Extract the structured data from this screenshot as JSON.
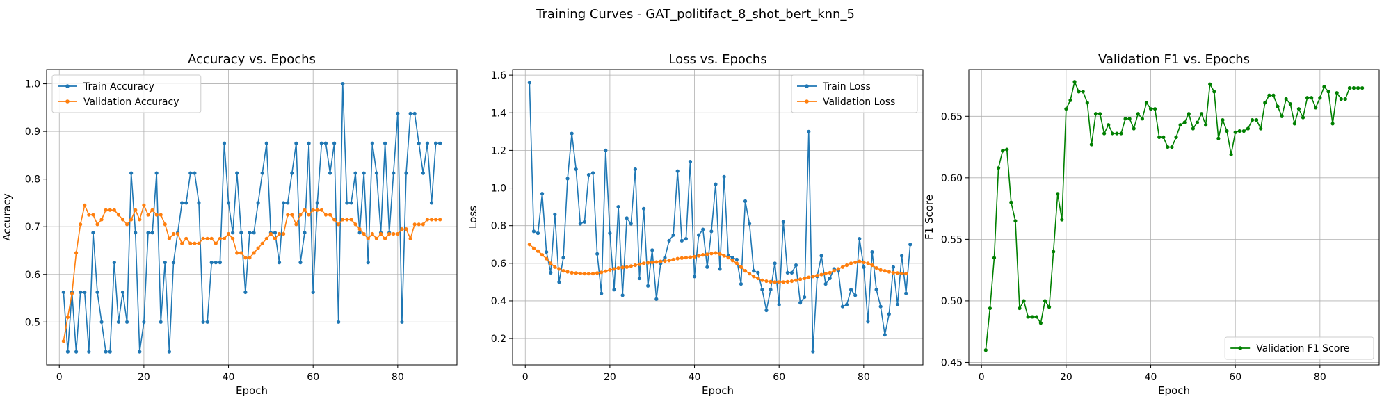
{
  "suptitle": "Training Curves - GAT_politifact_8_shot_bert_knn_5",
  "chart_data": [
    {
      "type": "line",
      "title": "Accuracy vs. Epochs",
      "xlabel": "Epoch",
      "ylabel": "Accuracy",
      "xlim": [
        -3,
        94
      ],
      "ylim": [
        0.41,
        1.03
      ],
      "xticks": [
        0,
        20,
        40,
        60,
        80
      ],
      "yticks": [
        0.5,
        0.6,
        0.7,
        0.8,
        0.9,
        1.0
      ],
      "ytick_decimals": 1,
      "grid": true,
      "legend_position": "upper-left",
      "series": [
        {
          "name": "Train Accuracy",
          "color": "#1f77b4",
          "values": [
            0.5625,
            0.4375,
            0.5625,
            0.4375,
            0.5625,
            0.5625,
            0.4375,
            0.6875,
            0.5625,
            0.5,
            0.4375,
            0.4375,
            0.625,
            0.5,
            0.5625,
            0.5,
            0.8125,
            0.6875,
            0.4375,
            0.5,
            0.6875,
            0.6875,
            0.8125,
            0.5,
            0.625,
            0.4375,
            0.625,
            0.6875,
            0.75,
            0.75,
            0.8125,
            0.8125,
            0.75,
            0.5,
            0.5,
            0.625,
            0.625,
            0.625,
            0.875,
            0.75,
            0.6875,
            0.8125,
            0.6875,
            0.5625,
            0.6875,
            0.6875,
            0.75,
            0.8125,
            0.875,
            0.6875,
            0.6875,
            0.625,
            0.75,
            0.75,
            0.8125,
            0.875,
            0.625,
            0.6875,
            0.875,
            0.5625,
            0.75,
            0.875,
            0.875,
            0.8125,
            0.875,
            0.5,
            1.0,
            0.75,
            0.75,
            0.8125,
            0.6875,
            0.8125,
            0.625,
            0.875,
            0.8125,
            0.6875,
            0.875,
            0.6875,
            0.8125,
            0.9375,
            0.5,
            0.8125,
            0.9375,
            0.9375,
            0.875,
            0.8125,
            0.875,
            0.75,
            0.875,
            0.875
          ]
        },
        {
          "name": "Validation Accuracy",
          "color": "#ff7f0e",
          "values": [
            0.46,
            0.51,
            0.56,
            0.645,
            0.705,
            0.745,
            0.725,
            0.725,
            0.705,
            0.715,
            0.735,
            0.735,
            0.735,
            0.725,
            0.715,
            0.705,
            0.715,
            0.735,
            0.715,
            0.745,
            0.725,
            0.735,
            0.725,
            0.725,
            0.705,
            0.675,
            0.685,
            0.685,
            0.665,
            0.675,
            0.665,
            0.665,
            0.665,
            0.675,
            0.675,
            0.675,
            0.665,
            0.675,
            0.675,
            0.685,
            0.675,
            0.645,
            0.645,
            0.635,
            0.635,
            0.645,
            0.655,
            0.665,
            0.675,
            0.685,
            0.675,
            0.685,
            0.685,
            0.725,
            0.725,
            0.705,
            0.725,
            0.735,
            0.725,
            0.735,
            0.735,
            0.735,
            0.725,
            0.725,
            0.715,
            0.705,
            0.715,
            0.715,
            0.715,
            0.705,
            0.695,
            0.685,
            0.675,
            0.685,
            0.675,
            0.685,
            0.675,
            0.685,
            0.685,
            0.685,
            0.695,
            0.695,
            0.675,
            0.705,
            0.705,
            0.705,
            0.715,
            0.715,
            0.715,
            0.715
          ]
        }
      ]
    },
    {
      "type": "line",
      "title": "Loss vs. Epochs",
      "xlabel": "Epoch",
      "ylabel": "Loss",
      "xlim": [
        -3,
        94
      ],
      "ylim": [
        0.06,
        1.63
      ],
      "xticks": [
        0,
        20,
        40,
        60,
        80
      ],
      "yticks": [
        0.2,
        0.4,
        0.6,
        0.8,
        1.0,
        1.2,
        1.4,
        1.6
      ],
      "ytick_decimals": 1,
      "grid": true,
      "legend_position": "upper-right",
      "series": [
        {
          "name": "Train Loss",
          "color": "#1f77b4",
          "values": [
            1.56,
            0.77,
            0.76,
            0.97,
            0.66,
            0.55,
            0.86,
            0.5,
            0.63,
            1.05,
            1.29,
            1.1,
            0.81,
            0.82,
            1.07,
            1.08,
            0.65,
            0.44,
            1.2,
            0.76,
            0.46,
            0.9,
            0.43,
            0.84,
            0.81,
            1.1,
            0.52,
            0.89,
            0.48,
            0.67,
            0.41,
            0.6,
            0.63,
            0.72,
            0.75,
            1.09,
            0.72,
            0.73,
            1.14,
            0.53,
            0.75,
            0.78,
            0.58,
            0.77,
            1.02,
            0.57,
            1.06,
            0.64,
            0.63,
            0.62,
            0.49,
            0.93,
            0.81,
            0.56,
            0.55,
            0.46,
            0.35,
            0.46,
            0.6,
            0.38,
            0.82,
            0.55,
            0.55,
            0.59,
            0.39,
            0.42,
            1.3,
            0.13,
            0.53,
            0.64,
            0.49,
            0.52,
            0.57,
            0.56,
            0.37,
            0.38,
            0.46,
            0.43,
            0.73,
            0.58,
            0.29,
            0.66,
            0.46,
            0.37,
            0.22,
            0.33,
            0.58,
            0.38,
            0.64,
            0.44,
            0.7
          ]
        },
        {
          "name": "Validation Loss",
          "color": "#ff7f0e",
          "values": [
            0.7,
            0.68,
            0.665,
            0.645,
            0.625,
            0.6,
            0.58,
            0.57,
            0.56,
            0.555,
            0.55,
            0.548,
            0.546,
            0.545,
            0.545,
            0.545,
            0.548,
            0.552,
            0.558,
            0.565,
            0.57,
            0.575,
            0.578,
            0.58,
            0.585,
            0.59,
            0.595,
            0.6,
            0.603,
            0.605,
            0.607,
            0.61,
            0.612,
            0.615,
            0.62,
            0.625,
            0.628,
            0.63,
            0.632,
            0.635,
            0.64,
            0.645,
            0.648,
            0.652,
            0.655,
            0.65,
            0.64,
            0.63,
            0.615,
            0.6,
            0.58,
            0.56,
            0.545,
            0.53,
            0.52,
            0.51,
            0.505,
            0.502,
            0.5,
            0.5,
            0.5,
            0.502,
            0.505,
            0.51,
            0.515,
            0.52,
            0.525,
            0.53,
            0.535,
            0.54,
            0.545,
            0.55,
            0.56,
            0.57,
            0.58,
            0.59,
            0.6,
            0.605,
            0.61,
            0.605,
            0.6,
            0.59,
            0.575,
            0.565,
            0.56,
            0.555,
            0.55,
            0.548,
            0.546,
            0.545
          ]
        }
      ]
    },
    {
      "type": "line",
      "title": "Validation F1 vs. Epochs",
      "xlabel": "Epoch",
      "ylabel": "F1 Score",
      "xlim": [
        -3,
        94
      ],
      "ylim": [
        0.448,
        0.688
      ],
      "xticks": [
        0,
        20,
        40,
        60,
        80
      ],
      "yticks": [
        0.45,
        0.5,
        0.55,
        0.6,
        0.65
      ],
      "ytick_decimals": 2,
      "grid": true,
      "legend_position": "lower-right",
      "series": [
        {
          "name": "Validation F1 Score",
          "color": "#008000",
          "values": [
            0.46,
            0.494,
            0.535,
            0.608,
            0.622,
            0.623,
            0.58,
            0.565,
            0.494,
            0.5,
            0.487,
            0.487,
            0.487,
            0.482,
            0.5,
            0.495,
            0.54,
            0.587,
            0.566,
            0.656,
            0.663,
            0.678,
            0.67,
            0.67,
            0.661,
            0.627,
            0.652,
            0.652,
            0.636,
            0.643,
            0.636,
            0.636,
            0.636,
            0.648,
            0.648,
            0.64,
            0.652,
            0.648,
            0.661,
            0.656,
            0.656,
            0.633,
            0.633,
            0.625,
            0.625,
            0.633,
            0.643,
            0.645,
            0.652,
            0.64,
            0.645,
            0.652,
            0.643,
            0.676,
            0.67,
            0.632,
            0.647,
            0.638,
            0.619,
            0.637,
            0.638,
            0.638,
            0.64,
            0.647,
            0.647,
            0.64,
            0.661,
            0.667,
            0.667,
            0.658,
            0.65,
            0.664,
            0.66,
            0.644,
            0.656,
            0.649,
            0.665,
            0.665,
            0.657,
            0.665,
            0.674,
            0.67,
            0.644,
            0.669,
            0.664,
            0.664,
            0.673,
            0.673,
            0.673,
            0.673
          ]
        }
      ]
    }
  ]
}
